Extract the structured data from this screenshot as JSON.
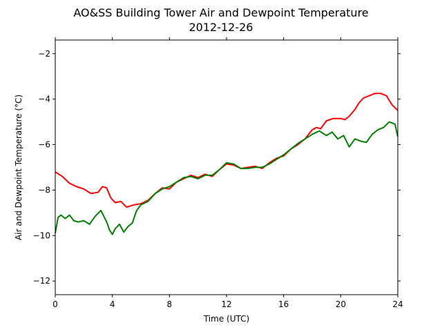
{
  "chart_data": {
    "type": "line",
    "title": "AO&SS Building Tower Air and Dewpoint Temperature",
    "subtitle": "2012-12-26",
    "xlabel": "Time (UTC)",
    "ylabel": "Air and Dewpoint Temperature (°C)",
    "xlim": [
      0,
      24
    ],
    "ylim": [
      -12.6,
      -1.4
    ],
    "xticks": [
      0,
      4,
      8,
      12,
      16,
      20,
      24
    ],
    "xtick_labels": [
      "0",
      "4",
      "8",
      "12",
      "16",
      "20",
      "24"
    ],
    "yticks": [
      -2,
      -4,
      -6,
      -8,
      -10,
      -12
    ],
    "ytick_labels": [
      "−2",
      "−4",
      "−6",
      "−8",
      "−10",
      "−12"
    ],
    "grid": false,
    "legend": "none",
    "series": [
      {
        "color": "#ff0000",
        "x": [
          0,
          0.5,
          1,
          1.5,
          2,
          2.5,
          3,
          3.3,
          3.6,
          3.9,
          4.2,
          4.6,
          5,
          5.5,
          6,
          6.5,
          7,
          7.5,
          8,
          8.5,
          9,
          9.5,
          10,
          10.5,
          11,
          11.5,
          12,
          12.5,
          13,
          13.5,
          14,
          14.5,
          15,
          15.5,
          16,
          16.5,
          17,
          17.5,
          18,
          18.3,
          18.6,
          19,
          19.5,
          20,
          20.3,
          20.6,
          21,
          21.3,
          21.6,
          22,
          22.4,
          22.8,
          23.2,
          23.6,
          24
        ],
        "values": [
          -7.2,
          -7.4,
          -7.7,
          -7.85,
          -7.95,
          -8.15,
          -8.1,
          -7.85,
          -7.9,
          -8.35,
          -8.55,
          -8.5,
          -8.75,
          -8.65,
          -8.6,
          -8.45,
          -8.15,
          -7.9,
          -7.95,
          -7.65,
          -7.5,
          -7.35,
          -7.45,
          -7.3,
          -7.4,
          -7.1,
          -6.85,
          -6.9,
          -7.05,
          -7.0,
          -6.95,
          -7.05,
          -6.8,
          -6.6,
          -6.5,
          -6.2,
          -6.0,
          -5.75,
          -5.35,
          -5.25,
          -5.3,
          -4.95,
          -4.85,
          -4.85,
          -4.9,
          -4.75,
          -4.45,
          -4.15,
          -3.95,
          -3.85,
          -3.75,
          -3.75,
          -3.85,
          -4.25,
          -4.5
        ]
      },
      {
        "color": "#008000",
        "x": [
          0,
          0.2,
          0.4,
          0.7,
          1,
          1.3,
          1.6,
          2,
          2.4,
          2.8,
          3.2,
          3.6,
          3.8,
          4,
          4.2,
          4.5,
          4.8,
          5.1,
          5.4,
          5.7,
          6,
          6.5,
          7,
          7.5,
          8,
          8.5,
          9,
          9.5,
          10,
          10.5,
          11,
          11.5,
          12,
          12.5,
          13,
          13.5,
          14,
          14.5,
          15,
          15.5,
          16,
          16.5,
          17,
          17.5,
          18,
          18.5,
          19,
          19.4,
          19.8,
          20.2,
          20.6,
          21,
          21.4,
          21.8,
          22.2,
          22.6,
          23,
          23.4,
          23.8,
          24
        ],
        "values": [
          -9.9,
          -9.2,
          -9.1,
          -9.25,
          -9.1,
          -9.35,
          -9.4,
          -9.35,
          -9.5,
          -9.15,
          -8.9,
          -9.4,
          -9.75,
          -9.95,
          -9.7,
          -9.5,
          -9.85,
          -9.6,
          -9.45,
          -8.9,
          -8.65,
          -8.5,
          -8.15,
          -7.95,
          -7.85,
          -7.65,
          -7.45,
          -7.4,
          -7.5,
          -7.35,
          -7.35,
          -7.1,
          -6.8,
          -6.85,
          -7.05,
          -7.05,
          -7.0,
          -7.0,
          -6.85,
          -6.65,
          -6.45,
          -6.2,
          -5.95,
          -5.75,
          -5.55,
          -5.4,
          -5.6,
          -5.45,
          -5.75,
          -5.6,
          -6.1,
          -5.75,
          -5.85,
          -5.9,
          -5.55,
          -5.35,
          -5.25,
          -5.0,
          -5.1,
          -5.65
        ]
      }
    ]
  }
}
